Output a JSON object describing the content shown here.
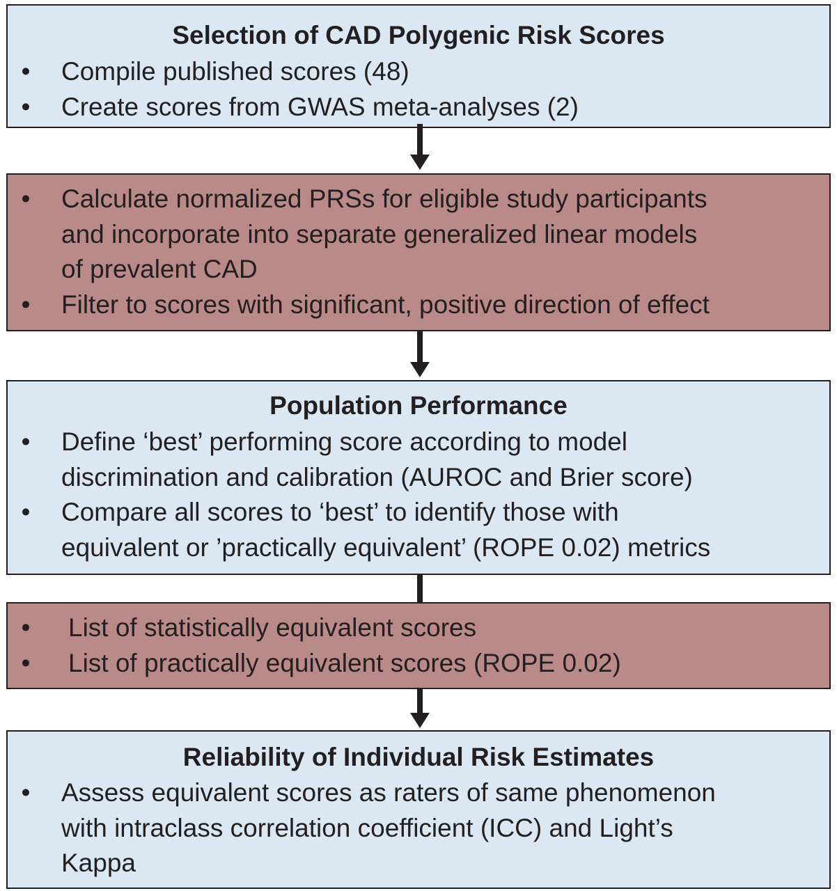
{
  "boxes": [
    {
      "title": "Selection of CAD Polygenic Risk Scores",
      "bullets": [
        [
          "Compile published scores (48)"
        ],
        [
          "Create scores from GWAS meta-analyses (2)"
        ]
      ]
    },
    {
      "bullets": [
        [
          "Calculate normalized PRSs for eligible study participants",
          "and incorporate into separate generalized linear models",
          "of prevalent CAD"
        ],
        [
          "Filter to scores with significant, positive direction of effect"
        ]
      ]
    },
    {
      "title": "Population Performance",
      "bullets": [
        [
          "Define ‘best’ performing score according to model",
          "discrimination and calibration (AUROC and Brier score)"
        ],
        [
          "Compare all scores to ‘best’ to identify those with",
          "equivalent or ’practically equivalent’ (ROPE 0.02) metrics"
        ]
      ]
    },
    {
      "bullets": [
        [
          "List of statistically equivalent scores"
        ],
        [
          "List of practically equivalent scores (ROPE 0.02)"
        ]
      ]
    },
    {
      "title": "Reliability of Individual Risk Estimates",
      "bullets": [
        [
          "Assess equivalent scores as raters of same phenomenon",
          "with intraclass correlation coefficient (ICC) and Light’s",
          "Kappa"
        ]
      ]
    }
  ],
  "bullet_symbol": "•",
  "colors": {
    "blue_box": "#dbe8f4",
    "red_box": "#b98a87",
    "ink": "#231f20"
  }
}
